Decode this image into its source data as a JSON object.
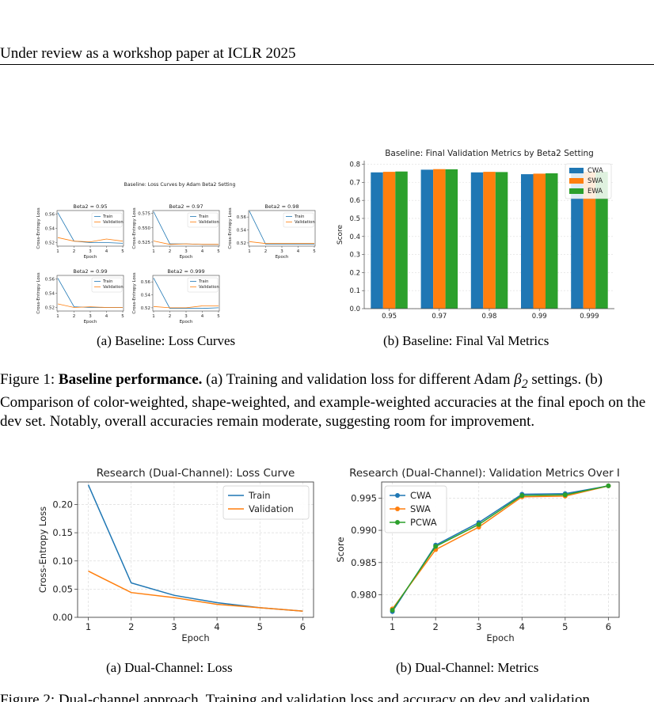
{
  "header": {
    "text": "Under review as a workshop paper at ICLR 2025"
  },
  "figure1": {
    "a": {
      "title": "Baseline: Loss Curves by Adam Beta2 Setting",
      "subplots": [
        {
          "title": "Beta2 = 0.95",
          "yticks": [
            "0.52",
            "0.54",
            "0.56"
          ]
        },
        {
          "title": "Beta2 = 0.97",
          "yticks": [
            "0.525",
            "0.550",
            "0.575"
          ]
        },
        {
          "title": "Beta2 = 0.98",
          "yticks": [
            "0.52",
            "0.54",
            "0.56"
          ]
        },
        {
          "title": "Beta2 = 0.99",
          "yticks": [
            "0.52",
            "0.54",
            "0.56"
          ]
        },
        {
          "title": "Beta2 = 0.999",
          "yticks": [
            "0.52",
            "0.54",
            "0.56"
          ]
        }
      ],
      "ylabel": "Cross-Entropy Loss",
      "xlabel": "Epoch",
      "legend": [
        "Train",
        "Validation"
      ],
      "subcaption": "(a) Baseline: Loss Curves"
    },
    "b": {
      "subcaption": "(b) Baseline: Final Val Metrics"
    },
    "caption_label": "Figure 1:",
    "caption_bold": "Baseline performance.",
    "caption_text_1": "(a) Training and validation loss for different Adam",
    "caption_text_2": "settings. (b) Comparison of color-weighted, shape-weighted, and example-weighted accuracies at the final epoch on the dev set. Notably, overall accuracies remain moderate, suggesting room for improvement."
  },
  "figure2": {
    "a": {
      "subcaption": "(a) Dual-Channel: Loss"
    },
    "b": {
      "subcaption": "(b) Dual-Channel: Metrics"
    }
  },
  "bottom_text": "Figure 2: Dual-channel approach. Training and validation loss and accuracy on dev and validation",
  "chart_data": [
    {
      "type": "line",
      "title": "Baseline: Loss Curves by Adam Beta2 Setting",
      "xlabel": "Epoch",
      "ylabel": "Cross-Entropy Loss",
      "x": [
        1,
        2,
        3,
        4,
        5
      ],
      "subplots": [
        {
          "title": "Beta2 = 0.95",
          "ylim": [
            0.515,
            0.565
          ],
          "series": [
            {
              "name": "Train",
              "values": [
                0.562,
                0.522,
                0.52,
                0.52,
                0.519
              ]
            },
            {
              "name": "Validation",
              "values": [
                0.527,
                0.522,
                0.521,
                0.525,
                0.522
              ]
            }
          ]
        },
        {
          "title": "Beta2 = 0.97",
          "ylim": [
            0.518,
            0.58
          ],
          "series": [
            {
              "name": "Train",
              "values": [
                0.578,
                0.522,
                0.522,
                0.521,
                0.521
              ]
            },
            {
              "name": "Validation",
              "values": [
                0.527,
                0.521,
                0.522,
                0.521,
                0.521
              ]
            }
          ]
        },
        {
          "title": "Beta2 = 0.98",
          "ylim": [
            0.515,
            0.57
          ],
          "series": [
            {
              "name": "Train",
              "values": [
                0.569,
                0.518,
                0.518,
                0.518,
                0.518
              ]
            },
            {
              "name": "Validation",
              "values": [
                0.522,
                0.519,
                0.519,
                0.519,
                0.519
              ]
            }
          ]
        },
        {
          "title": "Beta2 = 0.99",
          "ylim": [
            0.515,
            0.565
          ],
          "series": [
            {
              "name": "Train",
              "values": [
                0.561,
                0.521,
                0.52,
                0.52,
                0.52
              ]
            },
            {
              "name": "Validation",
              "values": [
                0.525,
                0.52,
                0.521,
                0.52,
                0.52
              ]
            }
          ]
        },
        {
          "title": "Beta2 = 0.999",
          "ylim": [
            0.515,
            0.57
          ],
          "series": [
            {
              "name": "Train",
              "values": [
                0.566,
                0.519,
                0.519,
                0.519,
                0.52
              ]
            },
            {
              "name": "Validation",
              "values": [
                0.522,
                0.52,
                0.52,
                0.523,
                0.523
              ]
            }
          ]
        }
      ],
      "colors": {
        "Train": "#1f77b4",
        "Validation": "#ff7f0e"
      }
    },
    {
      "type": "bar",
      "title": "Baseline: Final Validation Metrics by Beta2 Setting",
      "xlabel": "",
      "ylabel": "Score",
      "categories": [
        "0.95",
        "0.97",
        "0.98",
        "0.99",
        "0.999"
      ],
      "series": [
        {
          "name": "CWA",
          "color": "#1f77b4",
          "values": [
            0.755,
            0.77,
            0.755,
            0.745,
            0.755
          ]
        },
        {
          "name": "SWA",
          "color": "#ff7f0e",
          "values": [
            0.758,
            0.773,
            0.758,
            0.748,
            0.758
          ]
        },
        {
          "name": "EWA",
          "color": "#2ca02c",
          "values": [
            0.76,
            0.772,
            0.757,
            0.75,
            0.758
          ]
        }
      ],
      "ylim": [
        0,
        0.82
      ],
      "yticks": [
        "0.0",
        "0.1",
        "0.2",
        "0.3",
        "0.4",
        "0.5",
        "0.6",
        "0.7",
        "0.8"
      ],
      "legend_position": "top-right",
      "grid": true
    },
    {
      "type": "line",
      "title": "Research (Dual-Channel): Loss Curve",
      "xlabel": "Epoch",
      "ylabel": "Cross-Entropy Loss",
      "x": [
        1,
        2,
        3,
        4,
        5,
        6
      ],
      "series": [
        {
          "name": "Train",
          "color": "#1f77b4",
          "values": [
            0.235,
            0.061,
            0.039,
            0.026,
            0.017,
            0.011
          ]
        },
        {
          "name": "Validation",
          "color": "#ff7f0e",
          "values": [
            0.082,
            0.044,
            0.035,
            0.023,
            0.017,
            0.011
          ]
        }
      ],
      "ylim": [
        0,
        0.24
      ],
      "yticks": [
        "0.00",
        "0.05",
        "0.10",
        "0.15",
        "0.20"
      ],
      "legend_position": "top-right",
      "grid": true
    },
    {
      "type": "line",
      "title": "Research (Dual-Channel): Validation Metrics Over I",
      "xlabel": "Epoch",
      "ylabel": "Score",
      "x": [
        1,
        2,
        3,
        4,
        5,
        6
      ],
      "series": [
        {
          "name": "CWA",
          "color": "#1f77b4",
          "values": [
            0.9774,
            0.9877,
            0.9912,
            0.9956,
            0.9957,
            0.9969
          ]
        },
        {
          "name": "SWA",
          "color": "#ff7f0e",
          "values": [
            0.9778,
            0.987,
            0.9905,
            0.9952,
            0.9953,
            0.9969
          ]
        },
        {
          "name": "PCWA",
          "color": "#2ca02c",
          "values": [
            0.9776,
            0.9875,
            0.9909,
            0.9954,
            0.9955,
            0.9969
          ]
        }
      ],
      "ylim": [
        0.9765,
        0.9975
      ],
      "yticks": [
        "0.980",
        "0.985",
        "0.990",
        "0.995"
      ],
      "legend_position": "top-left",
      "grid": true
    }
  ]
}
